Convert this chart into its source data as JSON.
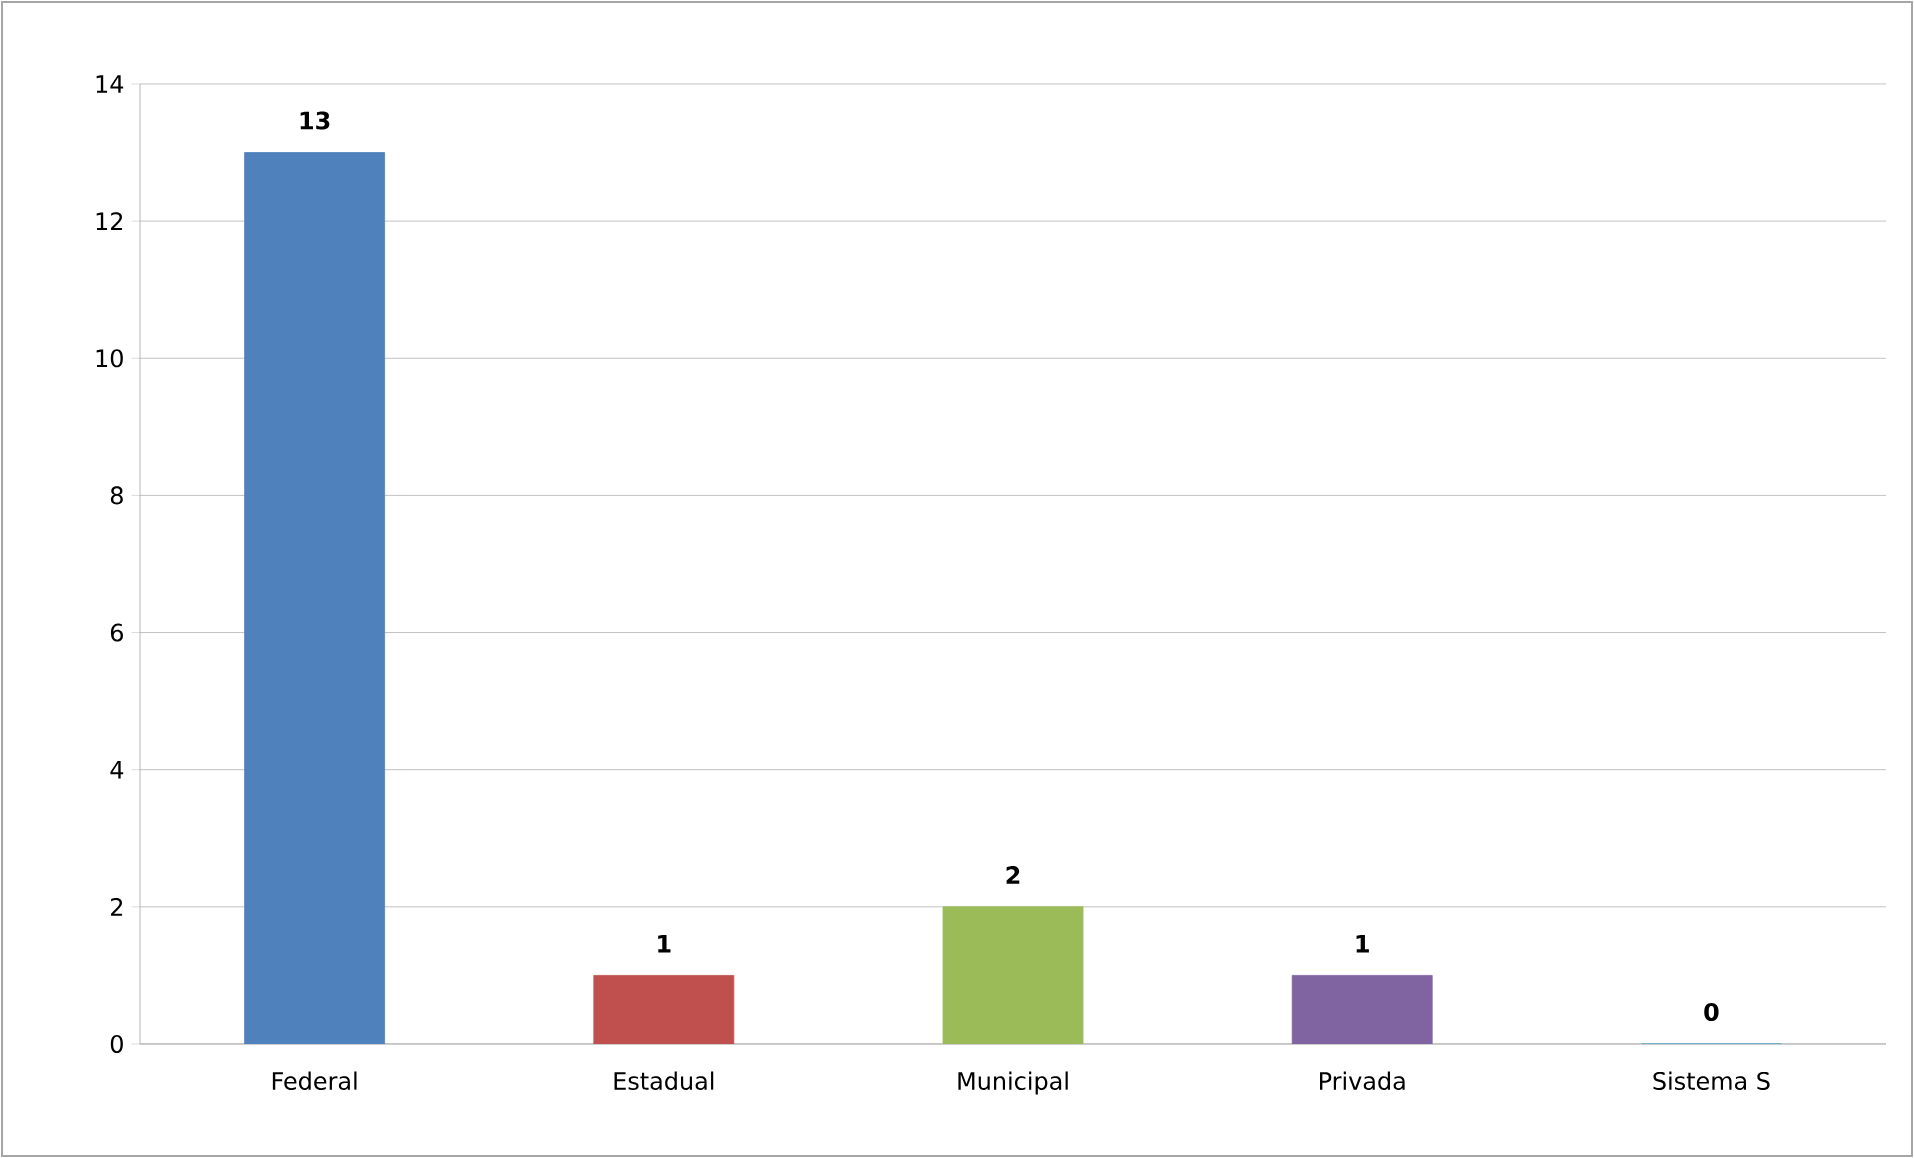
{
  "chart_data": {
    "type": "bar",
    "categories": [
      "Federal",
      "Estadual",
      "Municipal",
      "Privada",
      "Sistema S"
    ],
    "values": [
      13,
      1,
      2,
      1,
      0
    ],
    "colors": [
      "#4f81bd",
      "#c0504d",
      "#9bbb59",
      "#8064a2",
      "#4bacc6"
    ],
    "ylim": [
      0,
      14
    ],
    "yticks": [
      0,
      2,
      4,
      6,
      8,
      10,
      12,
      14
    ],
    "grid": "y",
    "data_labels": true
  }
}
